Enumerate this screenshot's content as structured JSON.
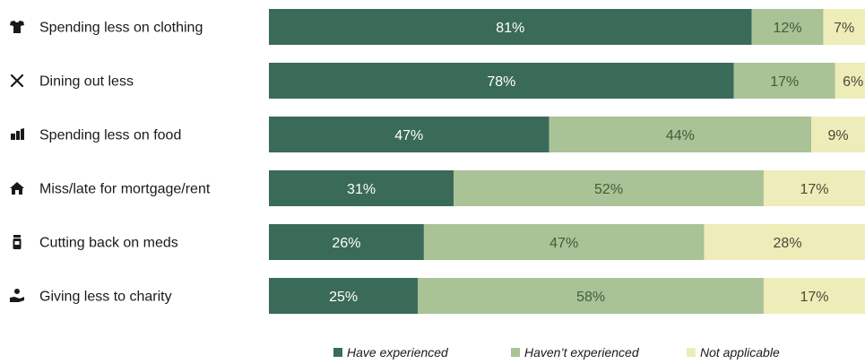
{
  "chart_data": {
    "type": "bar",
    "orientation": "horizontal",
    "stacked": true,
    "percent": true,
    "title": "",
    "xlabel": "",
    "ylabel": "",
    "xlim": [
      0,
      100
    ],
    "grid": false,
    "legend_position": "bottom",
    "categories": [
      "Spending less on clothing",
      "Dining out less",
      "Spending less on food",
      "Miss/late for mortgage/rent",
      "Cutting back on meds",
      "Giving less to charity"
    ],
    "category_icons": [
      "shirt-icon",
      "utensils-icon",
      "grocery-icon",
      "house-icon",
      "pill-bottle-icon",
      "giving-hand-icon"
    ],
    "series": [
      {
        "name": "Have experienced",
        "color": "#3a6b58",
        "text_color": "#ffffff",
        "values": [
          81,
          78,
          47,
          31,
          26,
          25
        ]
      },
      {
        "name": "Haven't experienced",
        "color": "#a9c296",
        "text_color": "#3f5e3a",
        "values": [
          12,
          17,
          44,
          52,
          47,
          58
        ]
      },
      {
        "name": "Not applicable",
        "color": "#eeecb8",
        "text_color": "#4a4a3a",
        "values": [
          7,
          6,
          9,
          17,
          28,
          17
        ]
      }
    ],
    "value_labels": [
      [
        "81%",
        "78%",
        "47%",
        "31%",
        "26%",
        "25%"
      ],
      [
        "12%",
        "17%",
        "44%",
        "52%",
        "47%",
        "58%"
      ],
      [
        "7%",
        "6%",
        "9%",
        "17%",
        "28%",
        "17%"
      ]
    ],
    "legend_labels": [
      "Have experienced",
      "Haven’t experienced",
      "Not applicable"
    ]
  }
}
